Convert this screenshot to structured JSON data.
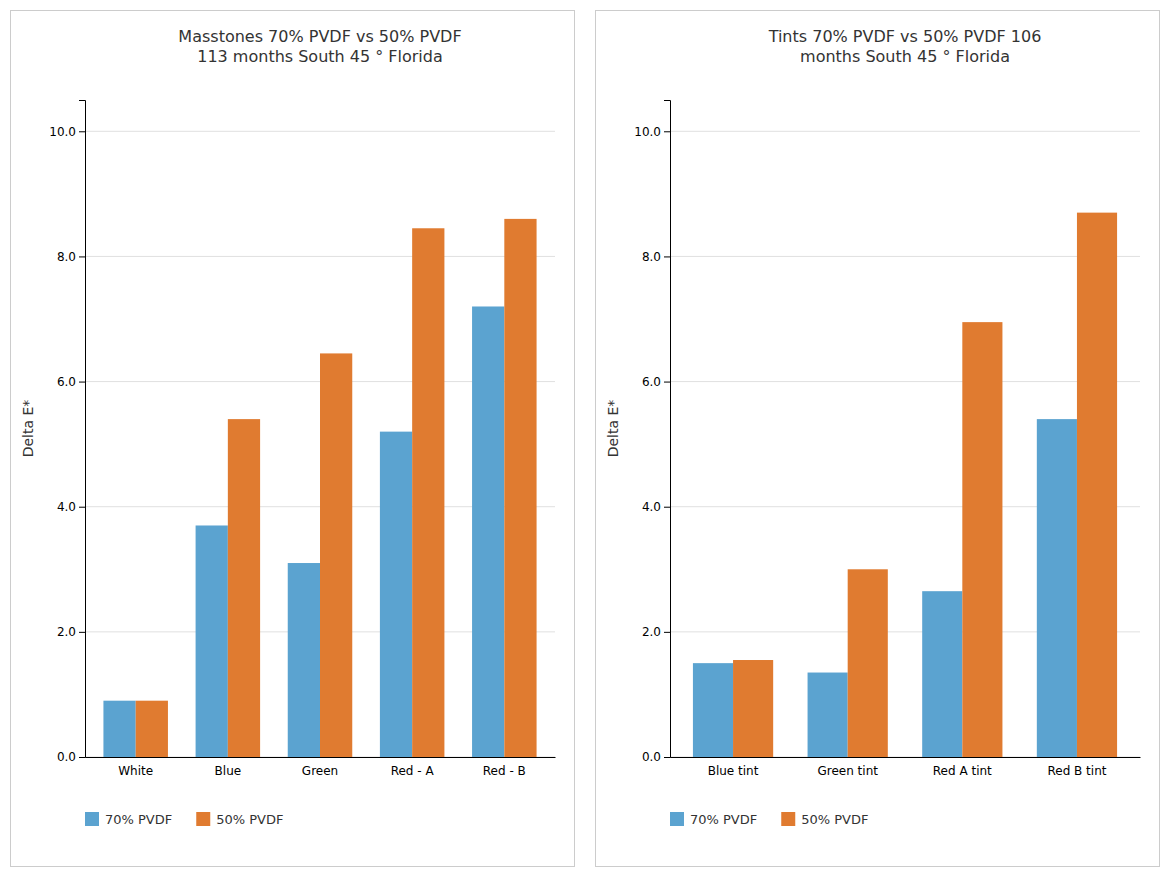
{
  "chart_data": [
    {
      "type": "bar",
      "title": "Masstones 70% PVDF vs 50% PVDF\n113 months South 45 ° Florida",
      "categories": [
        "White",
        "Blue",
        "Green",
        "Red - A",
        "Red - B"
      ],
      "series": [
        {
          "name": "70% PVDF",
          "color": "#5BA3D0",
          "values": [
            0.9,
            3.7,
            3.1,
            5.2,
            7.2
          ]
        },
        {
          "name": "50% PVDF",
          "color": "#E07B30",
          "values": [
            0.9,
            5.4,
            6.45,
            8.45,
            8.6
          ]
        }
      ],
      "ylabel": "Delta E*",
      "ylim": [
        0,
        10.5
      ],
      "yticks": [
        {
          "value": 0.0,
          "label": "0.0"
        },
        {
          "value": 2.0,
          "label": "2.0"
        },
        {
          "value": 4.0,
          "label": "4.0"
        },
        {
          "value": 6.0,
          "label": "6.0"
        },
        {
          "value": 8.0,
          "label": "8.0"
        },
        {
          "value": 10.0,
          "label": "10.0"
        }
      ],
      "grid": true,
      "legend": "bottom"
    },
    {
      "type": "bar",
      "title": "Tints 70% PVDF vs 50% PVDF 106\nmonths South 45 ° Florida",
      "categories": [
        "Blue tint",
        "Green tint",
        "Red A tint",
        "Red B tint"
      ],
      "series": [
        {
          "name": "70% PVDF",
          "color": "#5BA3D0",
          "values": [
            1.5,
            1.35,
            2.65,
            5.4
          ]
        },
        {
          "name": "50% PVDF",
          "color": "#E07B30",
          "values": [
            1.55,
            3.0,
            6.95,
            8.7
          ]
        }
      ],
      "ylabel": "Delta E*",
      "ylim": [
        0,
        10.5
      ],
      "yticks": [
        {
          "value": 0.0,
          "label": "0.0"
        },
        {
          "value": 2.0,
          "label": "2.0"
        },
        {
          "value": 4.0,
          "label": "4.0"
        },
        {
          "value": 6.0,
          "label": "6.0"
        },
        {
          "value": 8.0,
          "label": "8.0"
        },
        {
          "value": 10.0,
          "label": "10.0"
        }
      ],
      "grid": true,
      "legend": "bottom"
    }
  ]
}
